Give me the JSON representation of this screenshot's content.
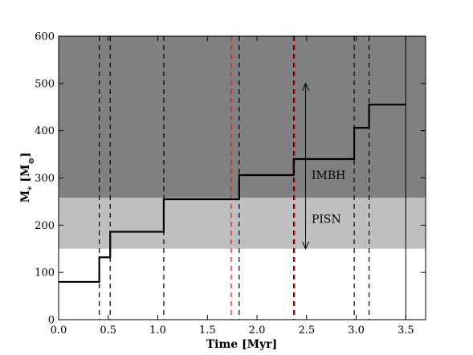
{
  "chart_data": {
    "type": "line",
    "title": "",
    "xlabel": "Time [Myr]",
    "ylabel_main": "M",
    "ylabel_sub": "*",
    "ylabel_unit_open": " [M",
    "ylabel_unit_sym": "⊙",
    "ylabel_unit_close": "]",
    "xlim": [
      0.0,
      3.7
    ],
    "ylim": [
      0,
      600
    ],
    "xticks": [
      "0.0",
      "0.5",
      "1.0",
      "1.5",
      "2.0",
      "2.5",
      "3.0",
      "3.5"
    ],
    "yticks": [
      "0",
      "100",
      "200",
      "300",
      "400",
      "500",
      "600"
    ],
    "grid": false,
    "bands": [
      {
        "name": "PISN",
        "y0": 150,
        "y1": 258,
        "color": "#bfbfbf"
      },
      {
        "name": "IMBH",
        "y0": 258,
        "y1": 600,
        "color": "#808080"
      }
    ],
    "series": [
      {
        "line_color": "#000000",
        "x": [
          0.0,
          0.41,
          0.41,
          0.52,
          0.52,
          1.06,
          1.06,
          1.82,
          1.82,
          2.37,
          2.37,
          2.98,
          2.98,
          3.13,
          3.13,
          3.5
        ],
        "y": [
          80,
          80,
          132,
          132,
          186,
          186,
          255,
          255,
          306,
          306,
          340,
          340,
          406,
          406,
          455,
          455
        ]
      }
    ],
    "vlines_black_dashed": [
      0.41,
      0.52,
      1.06,
      1.82,
      2.37,
      2.98,
      3.13
    ],
    "vlines_red_dashed": [
      1.74,
      2.38
    ],
    "vline_solid": 3.5,
    "annotations": [
      {
        "text": "IMBH",
        "x": 2.55,
        "y": 306
      },
      {
        "text": "PISN",
        "x": 2.55,
        "y": 213
      }
    ],
    "arrows": [
      {
        "x": 2.49,
        "y_from": 258,
        "y_to": 500
      },
      {
        "x": 2.49,
        "y_from": 258,
        "y_to": 150
      }
    ]
  }
}
